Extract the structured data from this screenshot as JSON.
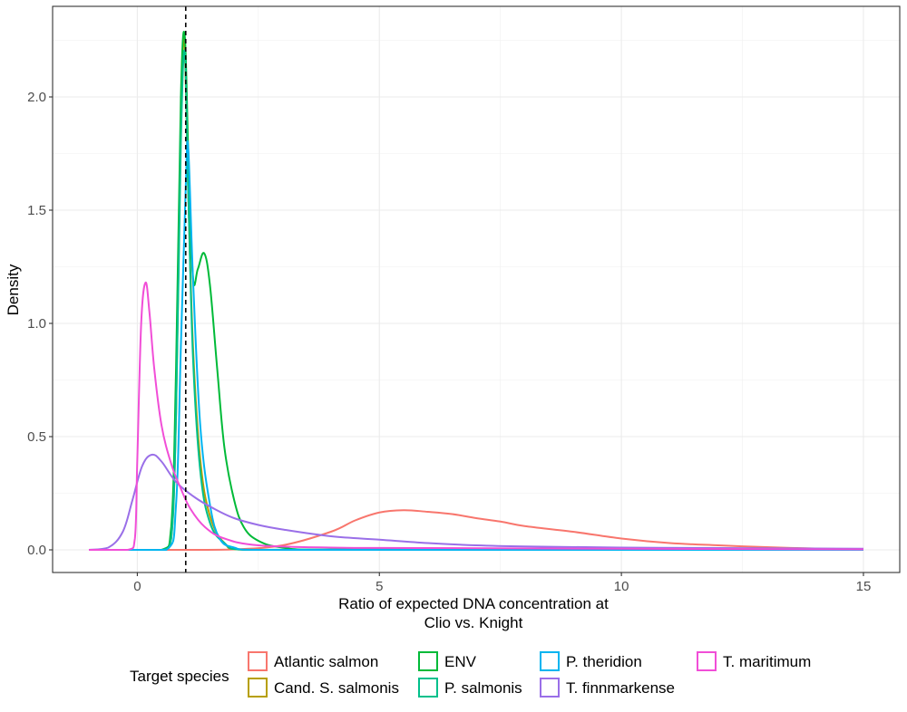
{
  "chart_data": {
    "type": "line",
    "title": "",
    "xlabel_lines": [
      "Ratio of expected DNA concentration at",
      "Clio vs. Knight"
    ],
    "ylabel": "Density",
    "xlim": [
      -1.75,
      15.75
    ],
    "ylim": [
      -0.1,
      2.4
    ],
    "x_ticks": [
      0,
      5,
      10,
      15
    ],
    "y_ticks": [
      0.0,
      0.5,
      1.0,
      1.5,
      2.0
    ],
    "x_tick_labels": [
      "0",
      "5",
      "10",
      "15"
    ],
    "y_tick_labels": [
      "0.0",
      "0.5",
      "1.0",
      "1.5",
      "2.0"
    ],
    "grid": true,
    "reference_line": {
      "x": 1,
      "style": "dashed",
      "color": "#000000"
    },
    "legend": {
      "title": "Target species",
      "position": "bottom",
      "columns": 4
    },
    "series": [
      {
        "name": "Atlantic salmon",
        "color": "#F8766D",
        "points": [
          [
            -1,
            0
          ],
          [
            0,
            0
          ],
          [
            1,
            0
          ],
          [
            2,
            0.002
          ],
          [
            3,
            0.02
          ],
          [
            4,
            0.08
          ],
          [
            4.5,
            0.13
          ],
          [
            5,
            0.165
          ],
          [
            5.5,
            0.175
          ],
          [
            6,
            0.168
          ],
          [
            6.5,
            0.158
          ],
          [
            7,
            0.14
          ],
          [
            7.5,
            0.125
          ],
          [
            8,
            0.105
          ],
          [
            9,
            0.08
          ],
          [
            10,
            0.05
          ],
          [
            11,
            0.03
          ],
          [
            12,
            0.02
          ],
          [
            13,
            0.012
          ],
          [
            14,
            0.006
          ],
          [
            15,
            0.002
          ]
        ]
      },
      {
        "name": "Cand. S. salmonis",
        "color": "#B79F00",
        "points": [
          [
            -1,
            0
          ],
          [
            0.5,
            0
          ],
          [
            0.7,
            0.05
          ],
          [
            0.8,
            0.6
          ],
          [
            0.9,
            1.9
          ],
          [
            0.97,
            2.25
          ],
          [
            1.05,
            1.6
          ],
          [
            1.15,
            0.9
          ],
          [
            1.3,
            0.4
          ],
          [
            1.5,
            0.15
          ],
          [
            1.8,
            0.03
          ],
          [
            2.2,
            0
          ],
          [
            15,
            0
          ]
        ]
      },
      {
        "name": "ENV",
        "color": "#00BA38",
        "points": [
          [
            -1,
            0
          ],
          [
            0.5,
            0
          ],
          [
            0.7,
            0.1
          ],
          [
            0.8,
            0.8
          ],
          [
            0.9,
            2.0
          ],
          [
            0.98,
            2.27
          ],
          [
            1.06,
            1.7
          ],
          [
            1.15,
            1.2
          ],
          [
            1.25,
            1.24
          ],
          [
            1.38,
            1.31
          ],
          [
            1.5,
            1.17
          ],
          [
            1.65,
            0.8
          ],
          [
            1.8,
            0.45
          ],
          [
            2.0,
            0.22
          ],
          [
            2.2,
            0.1
          ],
          [
            2.5,
            0.04
          ],
          [
            3,
            0.01
          ],
          [
            4,
            0
          ],
          [
            15,
            0
          ]
        ]
      },
      {
        "name": "P. salmonis",
        "color": "#00C08B",
        "points": [
          [
            -1,
            0
          ],
          [
            0.5,
            0
          ],
          [
            0.7,
            0.05
          ],
          [
            0.8,
            0.6
          ],
          [
            0.9,
            1.8
          ],
          [
            0.98,
            2.2
          ],
          [
            1.05,
            1.6
          ],
          [
            1.15,
            0.85
          ],
          [
            1.3,
            0.35
          ],
          [
            1.5,
            0.12
          ],
          [
            1.8,
            0.03
          ],
          [
            2.2,
            0
          ],
          [
            6,
            0.004
          ],
          [
            15,
            0
          ]
        ]
      },
      {
        "name": "P. theridion",
        "color": "#00B4F0",
        "points": [
          [
            -1,
            0
          ],
          [
            0.6,
            0
          ],
          [
            0.8,
            0.2
          ],
          [
            0.9,
            0.9
          ],
          [
            1.0,
            1.6
          ],
          [
            1.05,
            1.78
          ],
          [
            1.15,
            1.2
          ],
          [
            1.3,
            0.55
          ],
          [
            1.5,
            0.2
          ],
          [
            1.7,
            0.05
          ],
          [
            2.0,
            0.01
          ],
          [
            2.5,
            0
          ],
          [
            15,
            0
          ]
        ]
      },
      {
        "name": "T. finnmarkense",
        "color": "#9A6FE8",
        "points": [
          [
            -1,
            0
          ],
          [
            -0.6,
            0.01
          ],
          [
            -0.3,
            0.08
          ],
          [
            -0.1,
            0.22
          ],
          [
            0.1,
            0.37
          ],
          [
            0.3,
            0.42
          ],
          [
            0.5,
            0.39
          ],
          [
            0.8,
            0.3
          ],
          [
            1.2,
            0.23
          ],
          [
            1.6,
            0.18
          ],
          [
            2,
            0.14
          ],
          [
            2.5,
            0.11
          ],
          [
            3,
            0.09
          ],
          [
            4,
            0.06
          ],
          [
            5,
            0.045
          ],
          [
            6,
            0.03
          ],
          [
            7,
            0.02
          ],
          [
            8,
            0.015
          ],
          [
            10,
            0.01
          ],
          [
            12,
            0.008
          ],
          [
            15,
            0.005
          ]
        ]
      },
      {
        "name": "T. maritimum",
        "color": "#F14ED7",
        "points": [
          [
            -1,
            0
          ],
          [
            -0.2,
            0
          ],
          [
            -0.05,
            0.05
          ],
          [
            0.0,
            0.4
          ],
          [
            0.08,
            1.0
          ],
          [
            0.17,
            1.18
          ],
          [
            0.25,
            1.05
          ],
          [
            0.35,
            0.8
          ],
          [
            0.5,
            0.55
          ],
          [
            0.7,
            0.38
          ],
          [
            0.9,
            0.27
          ],
          [
            1.1,
            0.18
          ],
          [
            1.4,
            0.1
          ],
          [
            1.8,
            0.05
          ],
          [
            2.5,
            0.02
          ],
          [
            4,
            0.01
          ],
          [
            6,
            0.008
          ],
          [
            10,
            0.005
          ],
          [
            15,
            0.002
          ]
        ]
      }
    ]
  }
}
